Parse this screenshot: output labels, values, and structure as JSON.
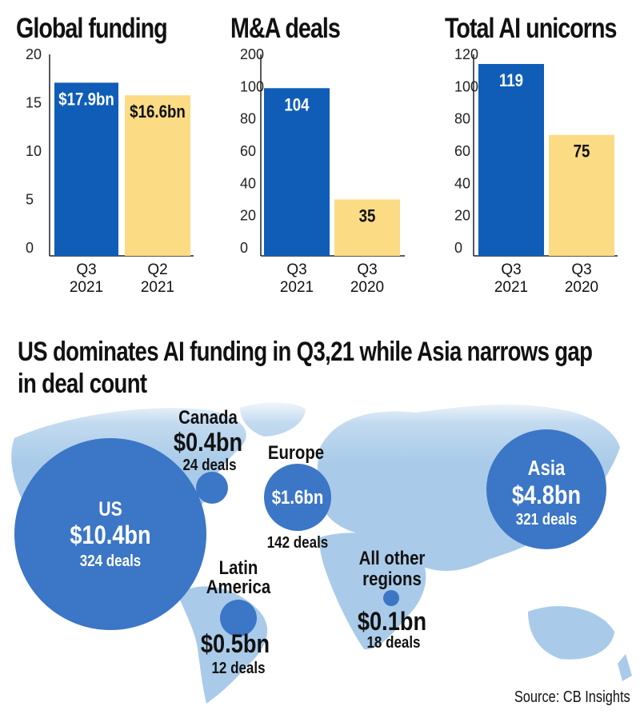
{
  "colors": {
    "blue": "#0f5db7",
    "yellow": "#fcdb85",
    "map": "#a9cbe9",
    "bubble": "#3c76c6"
  },
  "chart_data": [
    {
      "type": "bar",
      "title": "Global funding",
      "categories": [
        "Q3\n2021",
        "Q2\n2021"
      ],
      "values": [
        17.9,
        16.6
      ],
      "labels": [
        "$17.9bn",
        "$16.6bn"
      ],
      "ticks": [
        0,
        5,
        10,
        15,
        20
      ],
      "ylim": [
        0,
        20
      ],
      "colors": [
        "#0f5db7",
        "#fcdb85"
      ]
    },
    {
      "type": "bar",
      "title": "M&A deals",
      "categories": [
        "Q3\n2021",
        "Q3\n2020"
      ],
      "values": [
        104,
        35
      ],
      "labels": [
        "104",
        "35"
      ],
      "ticks": [
        0,
        20,
        40,
        60,
        80,
        100,
        200
      ],
      "ylim": [
        0,
        120
      ],
      "colors": [
        "#0f5db7",
        "#fcdb85"
      ]
    },
    {
      "type": "bar",
      "title": "Total AI unicorns",
      "categories": [
        "Q3\n2021",
        "Q3\n2020"
      ],
      "values": [
        119,
        75
      ],
      "labels": [
        "119",
        "75"
      ],
      "ticks": [
        0,
        20,
        40,
        60,
        80,
        100,
        120
      ],
      "ylim": [
        0,
        120
      ],
      "colors": [
        "#0f5db7",
        "#fcdb85"
      ]
    }
  ],
  "map": {
    "title": "US dominates AI funding in Q3,21 while Asia narrows gap in deal count",
    "regions": [
      {
        "region": "US",
        "value_label": "$10.4bn",
        "value": 10.4,
        "deals_label": "324 deals",
        "deals": 324
      },
      {
        "region": "Canada",
        "value_label": "$0.4bn",
        "value": 0.4,
        "deals_label": "24 deals",
        "deals": 24
      },
      {
        "region": "Europe",
        "value_label": "$1.6bn",
        "value": 1.6,
        "deals_label": "142 deals",
        "deals": 142
      },
      {
        "region": "Asia",
        "value_label": "$4.8bn",
        "value": 4.8,
        "deals_label": "321 deals",
        "deals": 321
      },
      {
        "region": "Latin America",
        "value_label": "$0.5bn",
        "value": 0.5,
        "deals_label": "12 deals",
        "deals": 12
      },
      {
        "region": "All other regions",
        "value_label": "$0.1bn",
        "value": 0.1,
        "deals_label": "18 deals",
        "deals": 18
      }
    ]
  },
  "source": "Source: CB Insights"
}
